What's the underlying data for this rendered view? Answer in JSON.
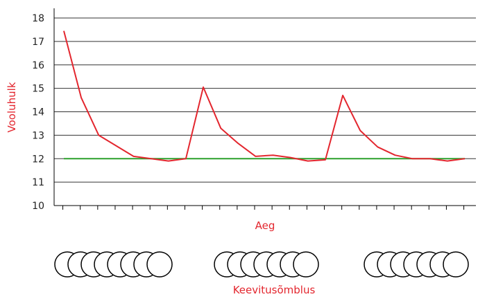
{
  "chart_data": {
    "type": "line",
    "xlabel": "Aeg",
    "ylabel": "Vooluhulk",
    "bottom_label": "Keevitusõmblus",
    "ylim": [
      10,
      18
    ],
    "yticks": [
      10,
      11,
      12,
      13,
      14,
      15,
      16,
      17,
      18
    ],
    "grid": "horizontal",
    "legend": "none",
    "series": [
      {
        "color": "#e3262e",
        "x": [
          0,
          1,
          2,
          3,
          4,
          5,
          6,
          7,
          8,
          9,
          10,
          11,
          12,
          13,
          14,
          15,
          16,
          17,
          18,
          19,
          20,
          21,
          22,
          23
        ],
        "y": [
          17.45,
          14.6,
          13.0,
          12.55,
          12.1,
          12.0,
          11.9,
          12.0,
          15.05,
          13.3,
          12.65,
          12.1,
          12.15,
          12.05,
          11.9,
          11.95,
          14.7,
          13.2,
          12.5,
          12.15,
          12.0,
          12.0,
          11.9,
          12.0
        ]
      },
      {
        "color": "#2ca02c",
        "x": [
          0,
          23
        ],
        "y": [
          12,
          12
        ]
      }
    ],
    "weld_groups": [
      8,
      7,
      7
    ]
  },
  "colors": {
    "axis_title": "#e3262e",
    "grid": "#333333",
    "axis": "#000000"
  }
}
